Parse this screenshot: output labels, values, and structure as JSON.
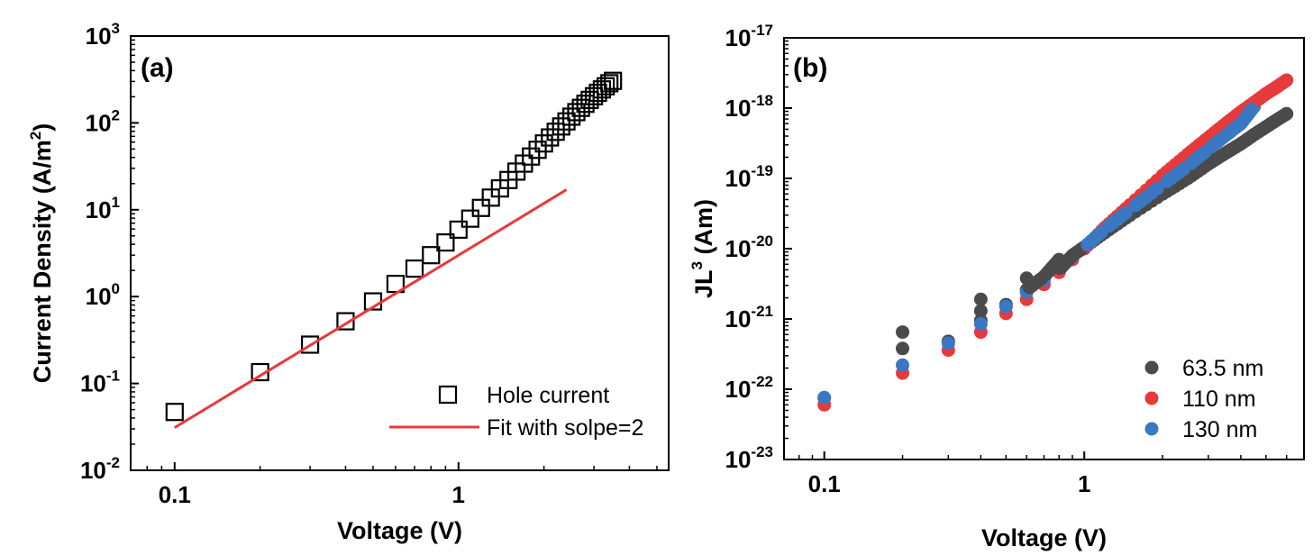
{
  "chart_data": [
    {
      "type": "scatter",
      "panel_label": "(a)",
      "xlabel": "Voltage (V)",
      "ylabel": "Current Density (A/m²)",
      "ylabel_parts": {
        "main": "Current Density (A/m",
        "sup": "2",
        "end": ")"
      },
      "x_scale": "log",
      "y_scale": "log",
      "xlim": [
        0.07,
        5.5
      ],
      "ylim": [
        0.01,
        1000
      ],
      "x_ticks": [
        {
          "value": 0.1,
          "label": "0.1"
        },
        {
          "value": 1,
          "label": "1"
        }
      ],
      "y_ticks": [
        {
          "value": 0.01,
          "base": "10",
          "exp": "-2"
        },
        {
          "value": 0.1,
          "base": "10",
          "exp": "-1"
        },
        {
          "value": 1,
          "base": "10",
          "exp": "0"
        },
        {
          "value": 10,
          "base": "10",
          "exp": "1"
        },
        {
          "value": 100,
          "base": "10",
          "exp": "2"
        },
        {
          "value": 1000,
          "base": "10",
          "exp": "3"
        }
      ],
      "legend_position": "bottom-right",
      "series": [
        {
          "name": "Hole current",
          "kind": "scatter",
          "marker": "open-square",
          "color": "#000000",
          "x": [
            0.1,
            0.2,
            0.3,
            0.4,
            0.5,
            0.6,
            0.7,
            0.8,
            0.9,
            1.0,
            1.1,
            1.2,
            1.3,
            1.4,
            1.5,
            1.6,
            1.7,
            1.8,
            1.9,
            2.0,
            2.1,
            2.2,
            2.3,
            2.4,
            2.5,
            2.6,
            2.7,
            2.8,
            2.9,
            3.0,
            3.1,
            3.2,
            3.3,
            3.4,
            3.5
          ],
          "y": [
            0.047,
            0.135,
            0.28,
            0.52,
            0.88,
            1.4,
            2.1,
            3.0,
            4.2,
            5.9,
            7.9,
            10.5,
            13.8,
            17.6,
            22,
            27.5,
            34,
            41,
            49,
            58,
            68,
            79,
            91,
            104,
            118,
            133,
            149,
            166,
            184,
            203,
            222,
            243,
            264,
            286,
            305
          ]
        },
        {
          "name": "Fit with solpe=2",
          "kind": "line",
          "color": "#e8393b",
          "x": [
            0.1,
            2.4
          ],
          "y": [
            0.031,
            17
          ]
        }
      ]
    },
    {
      "type": "scatter",
      "panel_label": "(b)",
      "xlabel": "Voltage (V)",
      "ylabel": "JL³ (Am)",
      "ylabel_parts": {
        "main": "JL",
        "sup": "3",
        "end": " (Am)"
      },
      "x_scale": "log",
      "y_scale": "log",
      "xlim": [
        0.07,
        7
      ],
      "ylim": [
        1e-23,
        1e-17
      ],
      "x_ticks": [
        {
          "value": 0.1,
          "label": "0.1"
        },
        {
          "value": 1,
          "label": "1"
        }
      ],
      "y_ticks": [
        {
          "value": 1e-23,
          "base": "10",
          "exp": "-23"
        },
        {
          "value": 1e-22,
          "base": "10",
          "exp": "-22"
        },
        {
          "value": 1e-21,
          "base": "10",
          "exp": "-21"
        },
        {
          "value": 1e-20,
          "base": "10",
          "exp": "-20"
        },
        {
          "value": 1e-19,
          "base": "10",
          "exp": "-19"
        },
        {
          "value": 1e-18,
          "base": "10",
          "exp": "-18"
        },
        {
          "value": 1e-17,
          "base": "10",
          "exp": "-17"
        }
      ],
      "legend_position": "bottom-right",
      "series": [
        {
          "name": "63.5 nm",
          "kind": "scatter",
          "marker": "filled-circle",
          "color": "#4a4a4a",
          "x": [
            0.1,
            0.2,
            0.2,
            0.3,
            0.4,
            0.4,
            0.4,
            0.5,
            0.6,
            0.6,
            0.7,
            0.8,
            0.8,
            0.9,
            1.0,
            1.2,
            1.5,
            2.0,
            2.5,
            3.0,
            3.5,
            4.0,
            4.5,
            5.0,
            5.5,
            6.0
          ],
          "y": [
            7.5e-23,
            6.5e-22,
            3.8e-22,
            4.8e-22,
            1.9e-21,
            1.3e-21,
            9.5e-22,
            1.6e-21,
            3.8e-21,
            2.6e-21,
            4e-21,
            7e-21,
            5e-21,
            8e-21,
            1.05e-20,
            1.7e-20,
            3e-20,
            6e-20,
            1e-19,
            1.6e-19,
            2.3e-19,
            3.1e-19,
            4.2e-19,
            5.4e-19,
            6.8e-19,
            8.3e-19
          ]
        },
        {
          "name": "110 nm",
          "kind": "scatter",
          "marker": "filled-circle",
          "color": "#e8393b",
          "x": [
            0.1,
            0.2,
            0.3,
            0.4,
            0.5,
            0.6,
            0.7,
            0.8,
            0.9,
            1.0,
            1.2,
            1.5,
            2.0,
            2.5,
            3.0,
            3.5,
            4.0,
            4.5,
            5.0,
            5.5,
            6.0
          ],
          "y": [
            6e-23,
            1.7e-22,
            3.6e-22,
            6.5e-22,
            1.2e-21,
            1.9e-21,
            3.1e-21,
            4.6e-21,
            7e-21,
            1e-20,
            2e-20,
            4.2e-20,
            1.1e-19,
            2.2e-19,
            3.8e-19,
            6e-19,
            8.8e-19,
            1.2e-18,
            1.6e-18,
            2e-18,
            2.5e-18
          ]
        },
        {
          "name": "130 nm",
          "kind": "scatter",
          "marker": "filled-circle",
          "color": "#3a78c4",
          "x": [
            0.1,
            0.2,
            0.3,
            0.4,
            0.5,
            0.6,
            0.7,
            0.8,
            0.9,
            1.0,
            1.2,
            1.5,
            2.0,
            2.5,
            3.0,
            3.5,
            4.0,
            4.5
          ],
          "y": [
            7.6e-23,
            2.2e-22,
            4.5e-22,
            8.5e-22,
            1.5e-21,
            2.4e-21,
            3.6e-21,
            5.3e-21,
            7.6e-21,
            1.05e-20,
            1.9e-20,
            3.6e-20,
            8.2e-20,
            1.5e-19,
            2.6e-19,
            4.1e-19,
            6e-19,
            1.05e-18
          ]
        }
      ]
    }
  ]
}
